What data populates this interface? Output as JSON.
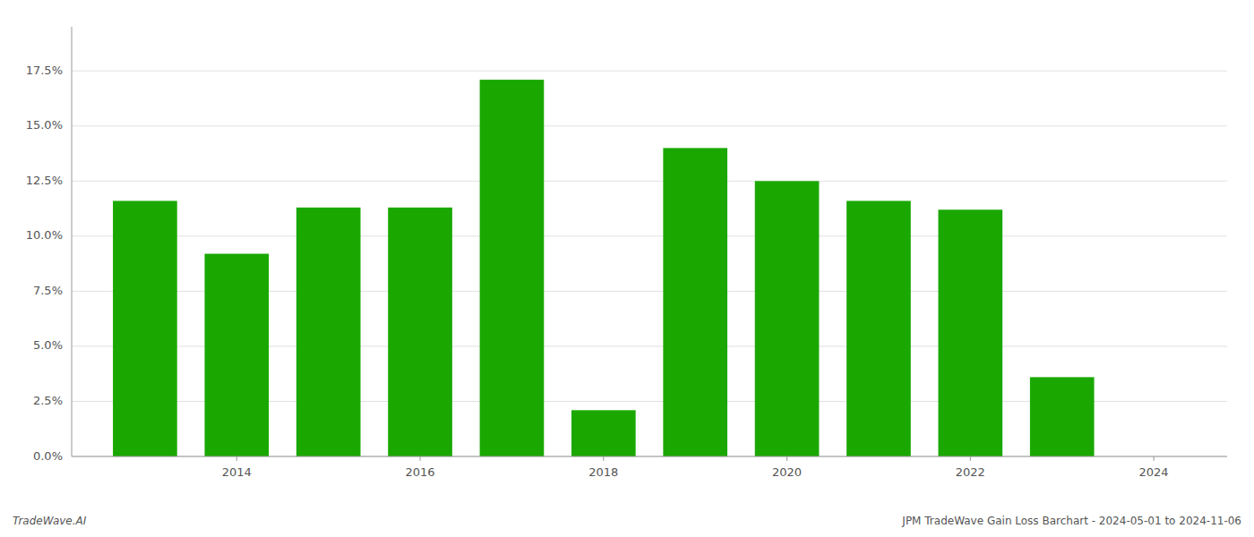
{
  "chart_data": {
    "type": "bar",
    "x": [
      2013,
      2014,
      2015,
      2016,
      2017,
      2018,
      2019,
      2020,
      2021,
      2022,
      2023
    ],
    "values": [
      0.116,
      0.092,
      0.113,
      0.113,
      0.171,
      0.021,
      0.14,
      0.125,
      0.116,
      0.112,
      0.036
    ],
    "color": "#1aa800",
    "ylim": [
      0.0,
      0.195
    ],
    "yticks": [
      {
        "value": 0.0,
        "label": "0.0%"
      },
      {
        "value": 0.025,
        "label": "2.5%"
      },
      {
        "value": 0.05,
        "label": "5.0%"
      },
      {
        "value": 0.075,
        "label": "7.5%"
      },
      {
        "value": 0.1,
        "label": "10.0%"
      },
      {
        "value": 0.125,
        "label": "12.5%"
      },
      {
        "value": 0.15,
        "label": "15.0%"
      },
      {
        "value": 0.175,
        "label": "17.5%"
      }
    ],
    "xlim": [
      2012.2,
      2024.8
    ],
    "xticks": [
      2014,
      2016,
      2018,
      2020,
      2022,
      2024
    ],
    "grid": true,
    "annotations": [
      "TradeWave.AI",
      "JPM TradeWave Gain Loss Barchart - 2024-05-01 to 2024-11-06"
    ]
  }
}
